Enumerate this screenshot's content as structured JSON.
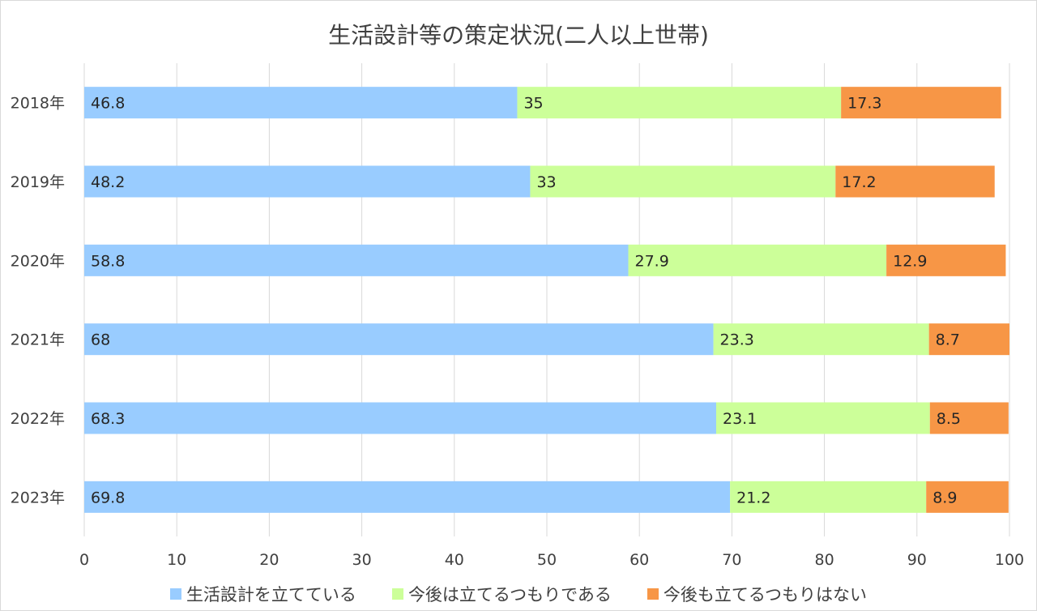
{
  "chart_data": {
    "type": "bar",
    "orientation": "horizontal",
    "stacked": true,
    "title": "生活設計等の策定状況(二人以上世帯)",
    "categories": [
      "2018年",
      "2019年",
      "2020年",
      "2021年",
      "2022年",
      "2023年"
    ],
    "series": [
      {
        "name": "生活設計を立てている",
        "color": "#99CCFF",
        "values": [
          46.8,
          48.2,
          58.8,
          68,
          68.3,
          69.8
        ]
      },
      {
        "name": "今後は立てるつもりである",
        "color": "#CCFF99",
        "values": [
          35,
          33,
          27.9,
          23.3,
          23.1,
          21.2
        ]
      },
      {
        "name": "今後も立てるつもりはない",
        "color": "#F79646",
        "values": [
          17.3,
          17.2,
          12.9,
          8.7,
          8.5,
          8.9
        ]
      }
    ],
    "xlim": [
      0,
      100
    ],
    "xticks": [
      0,
      10,
      20,
      30,
      40,
      50,
      60,
      70,
      80,
      90,
      100
    ],
    "grid": true,
    "legend_position": "bottom"
  }
}
